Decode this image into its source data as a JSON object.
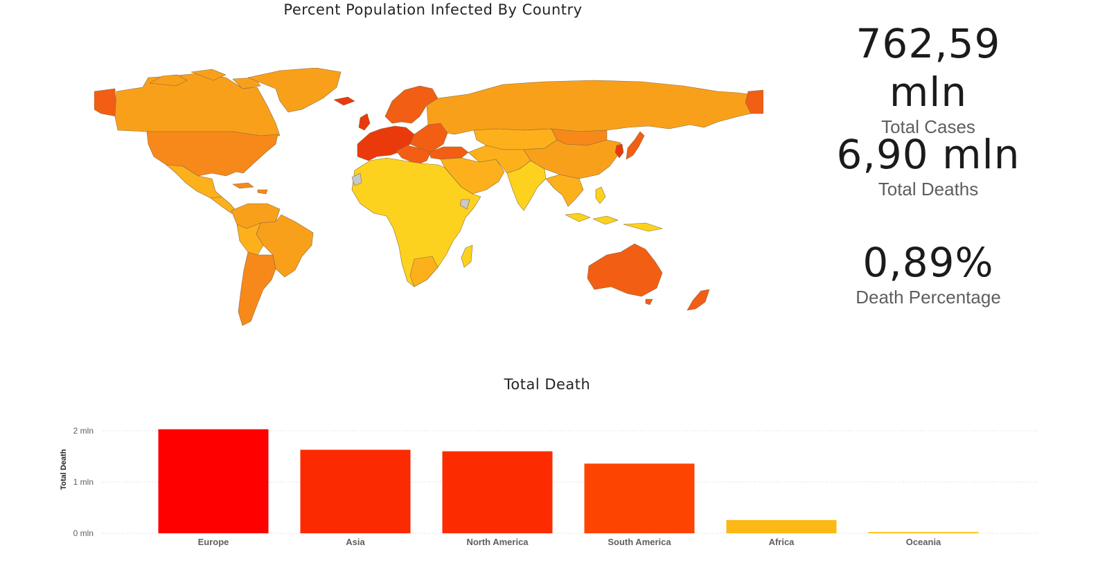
{
  "map": {
    "title": "Percent Population Infected By Country",
    "colors": {
      "low": "#fdd21f",
      "mid_low": "#fcb11c",
      "mid": "#f9a01b",
      "mid_high": "#f7891a",
      "high": "#f25e14",
      "very_high": "#ea3a0c",
      "no_data": "#c8c8c8"
    }
  },
  "kpis": [
    {
      "value": "762,59 mln",
      "label": "Total Cases"
    },
    {
      "value": "6,90 mln",
      "label": "Total Deaths"
    },
    {
      "value": "0,89%",
      "label": "Death Percentage"
    }
  ],
  "chart_data": {
    "type": "bar",
    "title": "Total Death",
    "xlabel": "",
    "ylabel": "Total Death",
    "categories": [
      "Europe",
      "Asia",
      "North America",
      "South America",
      "Africa",
      "Oceania"
    ],
    "values": [
      2030000,
      1630000,
      1600000,
      1360000,
      259000,
      25000
    ],
    "colors": [
      "#ff0000",
      "#fc2a00",
      "#fc2c00",
      "#fd4400",
      "#fcb814",
      "#fcc414"
    ],
    "ylim": [
      0,
      2000000
    ],
    "yticks": [
      {
        "value": 0,
        "label": "0 mln"
      },
      {
        "value": 1000000,
        "label": "1 mln"
      },
      {
        "value": 2000000,
        "label": "2 mln"
      }
    ],
    "grid": true,
    "grid_style": "dotted"
  }
}
